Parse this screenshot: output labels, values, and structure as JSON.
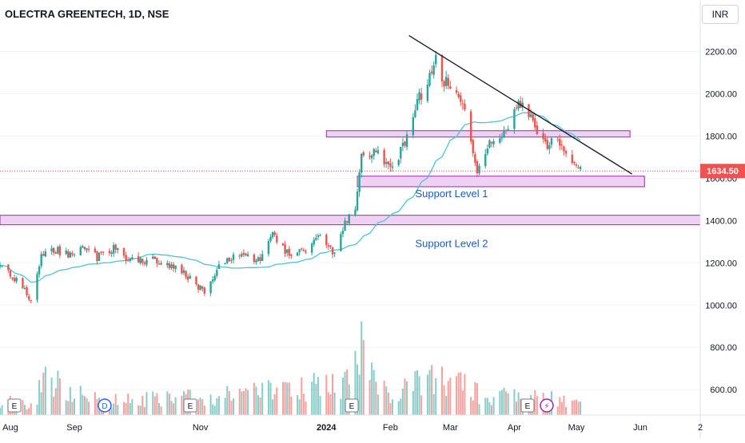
{
  "header": {
    "title": "OLECTRA GREENTECH, 1D, NSE",
    "currency": "INR"
  },
  "colors": {
    "up": "#26a69a",
    "down": "#ef5350",
    "ma": "#4fc3d4",
    "zone_fill": "#e9c3ef",
    "zone_border": "#9c27b0",
    "trendline": "#131722",
    "last_price_bg": "#ef5350",
    "label_text": "#1e5bbd"
  },
  "chart_data": {
    "type": "candlestick",
    "y_ticks": [
      "600.00",
      "800.00",
      "1000.00",
      "1200.00",
      "1400.00",
      "1600.00",
      "1800.00",
      "2000.00",
      "2200.00"
    ],
    "x_ticks": [
      "Aug",
      "Sep",
      "Nov",
      "2024",
      "Feb",
      "Mar",
      "Apr",
      "May",
      "Jun",
      "2"
    ],
    "last_price": 1634.5,
    "last_price_label": "1634.50",
    "zones": [
      {
        "low": 1795,
        "high": 1825,
        "from": "2024-01-01",
        "to": "2024-05-27"
      },
      {
        "low": 1560,
        "high": 1610,
        "from": "2024-01-16",
        "to": "2024-06-03"
      },
      {
        "low": 1380,
        "high": 1425,
        "from": "2023-07-27",
        "to": "2024-06-30"
      }
    ],
    "zone_labels": [
      {
        "text": "Support Level 1",
        "price": 1510
      },
      {
        "text": "Support Level 2",
        "price": 1275
      }
    ],
    "trendline": {
      "from": [
        "2024-02-10",
        2275
      ],
      "to": [
        "2024-05-28",
        1620
      ]
    },
    "event_markers": [
      "E",
      "E",
      "D",
      "E",
      "E",
      "E",
      "⚡"
    ],
    "ohlc_anchors": [
      [
        "2023-07-27",
        1180
      ],
      [
        "2023-08-01",
        1150
      ],
      [
        "2023-08-07",
        1080
      ],
      [
        "2023-08-11",
        1020
      ],
      [
        "2023-08-16",
        1230
      ],
      [
        "2023-08-23",
        1260
      ],
      [
        "2023-08-30",
        1240
      ],
      [
        "2023-09-05",
        1275
      ],
      [
        "2023-09-12",
        1225
      ],
      [
        "2023-09-20",
        1270
      ],
      [
        "2023-09-28",
        1210
      ],
      [
        "2023-10-10",
        1215
      ],
      [
        "2023-10-20",
        1180
      ],
      [
        "2023-10-27",
        1130
      ],
      [
        "2023-11-03",
        1060
      ],
      [
        "2023-11-10",
        1190
      ],
      [
        "2023-11-20",
        1240
      ],
      [
        "2023-11-30",
        1205
      ],
      [
        "2023-12-06",
        1325
      ],
      [
        "2023-12-14",
        1240
      ],
      [
        "2023-12-22",
        1260
      ],
      [
        "2023-12-29",
        1330
      ],
      [
        "2024-01-05",
        1240
      ],
      [
        "2024-01-10",
        1390
      ],
      [
        "2024-01-15",
        1455
      ],
      [
        "2024-01-18",
        1690
      ],
      [
        "2024-01-25",
        1720
      ],
      [
        "2024-02-01",
        1660
      ],
      [
        "2024-02-05",
        1705
      ],
      [
        "2024-02-09",
        1800
      ],
      [
        "2024-02-14",
        1960
      ],
      [
        "2024-02-19",
        2055
      ],
      [
        "2024-02-23",
        2170
      ],
      [
        "2024-02-27",
        2060
      ],
      [
        "2024-03-04",
        1995
      ],
      [
        "2024-03-08",
        1915
      ],
      [
        "2024-03-14",
        1620
      ],
      [
        "2024-03-20",
        1760
      ],
      [
        "2024-03-26",
        1780
      ],
      [
        "2024-04-02",
        1950
      ],
      [
        "2024-04-08",
        1915
      ],
      [
        "2024-04-12",
        1800
      ],
      [
        "2024-04-16",
        1750
      ],
      [
        "2024-04-22",
        1790
      ],
      [
        "2024-04-26",
        1720
      ],
      [
        "2024-04-30",
        1690
      ],
      [
        "2024-05-03",
        1634.5
      ]
    ],
    "volume_anchors": [
      [
        "2023-08-15",
        400
      ],
      [
        "2023-09-20",
        150
      ],
      [
        "2023-11-10",
        200
      ],
      [
        "2023-12-06",
        260
      ],
      [
        "2023-12-29",
        330
      ],
      [
        "2024-01-12",
        380
      ],
      [
        "2024-01-16",
        520
      ],
      [
        "2024-01-18",
        780
      ],
      [
        "2024-01-19",
        920
      ],
      [
        "2024-01-22",
        640
      ],
      [
        "2024-02-01",
        180
      ],
      [
        "2024-02-14",
        360
      ],
      [
        "2024-02-22",
        440
      ],
      [
        "2024-02-26",
        380
      ],
      [
        "2024-03-14",
        300
      ],
      [
        "2024-03-18",
        220
      ],
      [
        "2024-04-01",
        200
      ],
      [
        "2024-04-16",
        180
      ],
      [
        "2024-05-03",
        140
      ]
    ],
    "y_range": [
      480,
      2330
    ]
  }
}
